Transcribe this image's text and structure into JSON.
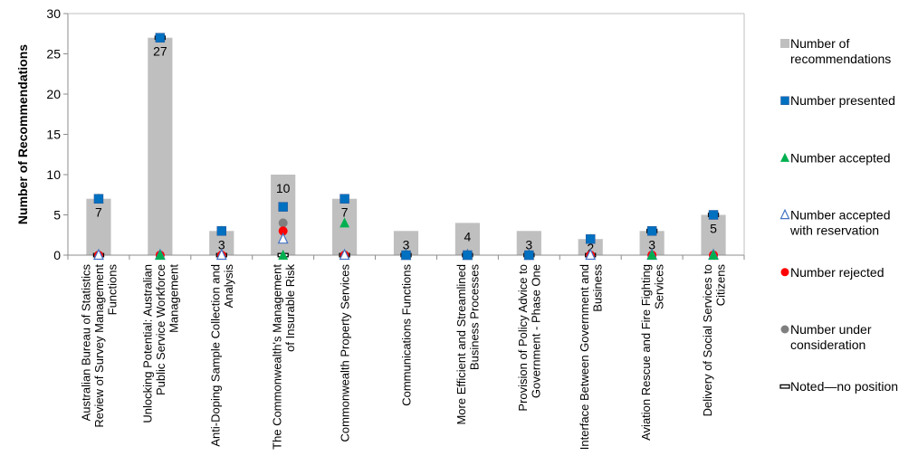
{
  "chart_data": {
    "type": "bar",
    "ylabel": "Number of Recommendations",
    "xlabel": "",
    "ylim": [
      0,
      30
    ],
    "yticks": [
      "0",
      "5",
      "10",
      "15",
      "20",
      "25",
      "30"
    ],
    "grid": false,
    "legend_position": "right",
    "categories": [
      [
        "Australian Bureau of Statistics",
        "Review of Survey Management",
        "Functions"
      ],
      [
        "Unlocking Potential: Australian",
        "Public Service Workforce",
        "Management"
      ],
      [
        "Anti-Doping Sample Collection and",
        "Analysis"
      ],
      [
        "The Commonwealth's Management",
        "of Insurable Risk"
      ],
      [
        "Commonwealth Property Services"
      ],
      [
        "Communications Functions"
      ],
      [
        "More Efficient and Streamlined",
        "Business Processes"
      ],
      [
        "Provision of Policy Advice to",
        "Government - Phase One"
      ],
      [
        "Interface Between Government and",
        "Business"
      ],
      [
        "Aviation Rescue and Fire Fighting",
        "Services"
      ],
      [
        "Delivery of Social Services to",
        "Citizens"
      ]
    ],
    "bar_series": {
      "name": [
        "Number of",
        "recommendations"
      ],
      "color": "#bfbfbf",
      "values": [
        7,
        27,
        3,
        10,
        7,
        3,
        4,
        3,
        2,
        3,
        5
      ],
      "data_labels": [
        "7",
        "27",
        "3",
        "10",
        "7",
        "3",
        "4",
        "3",
        "2",
        "3",
        "5"
      ]
    },
    "marker_series": [
      {
        "name": [
          "Number presented"
        ],
        "marker": "square",
        "color": "#0070c0",
        "values": [
          7,
          27,
          3,
          6,
          7,
          0,
          0,
          0,
          2,
          3,
          5
        ]
      },
      {
        "name": [
          "Number accepted"
        ],
        "marker": "triangle",
        "color": "#00b050",
        "values": [
          7,
          0,
          3,
          0,
          4,
          0,
          0,
          0,
          2,
          0,
          0
        ]
      },
      {
        "name": [
          "Number accepted",
          "with reservation"
        ],
        "marker": "triangle-open",
        "color": "#4472c4",
        "values": [
          0,
          0,
          0,
          2,
          0,
          0,
          0,
          0,
          0,
          0,
          0
        ]
      },
      {
        "name": [
          "Number rejected"
        ],
        "marker": "circle",
        "color": "#ff0000",
        "values": [
          0,
          0,
          0,
          3,
          0,
          0,
          0,
          0,
          0,
          0,
          0
        ]
      },
      {
        "name": [
          "Number under",
          "consideration"
        ],
        "marker": "circle",
        "color": "#7f7f7f",
        "values": [
          0,
          0,
          0,
          4,
          0,
          0,
          0,
          0,
          0,
          0,
          0
        ]
      },
      {
        "name": [
          "Noted—no position"
        ],
        "marker": "dash",
        "color": "#000000",
        "values": [
          0,
          27,
          0,
          0,
          0,
          0,
          0,
          0,
          0,
          3,
          5
        ]
      }
    ]
  }
}
